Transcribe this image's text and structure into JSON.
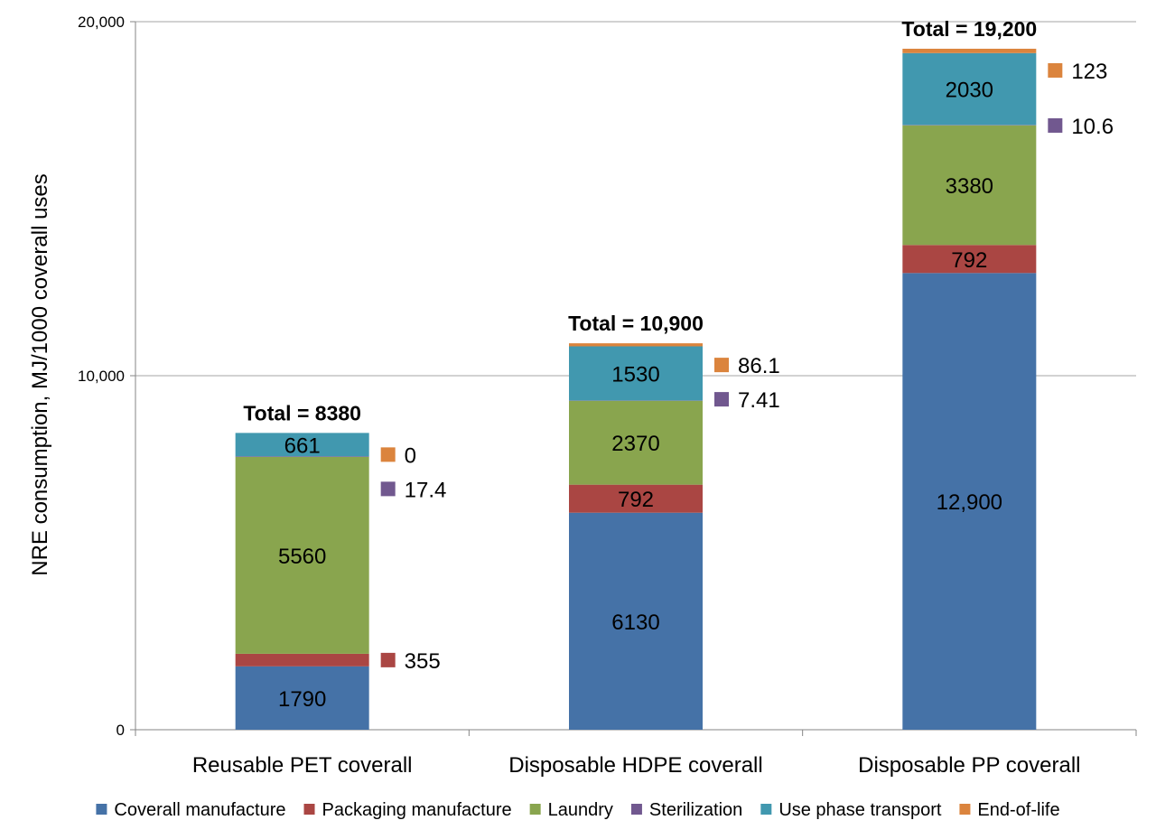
{
  "chart_data": {
    "type": "bar",
    "stacked": true,
    "title": "",
    "xlabel": "",
    "ylabel": "NRE consumption, MJ/1000 coverall uses",
    "ylim": [
      0,
      20000
    ],
    "yticks": [
      0,
      10000,
      20000
    ],
    "ytick_labels": [
      "0",
      "10,000",
      "20,000"
    ],
    "grid": true,
    "legend_position": "bottom",
    "categories": [
      "Reusable PET coverall",
      "Disposable HDPE coverall",
      "Disposable PP coverall"
    ],
    "series": [
      {
        "name": "Coverall manufacture",
        "color": "#4572a7",
        "values": [
          1790,
          6130,
          12900
        ],
        "labels": [
          "1790",
          "6130",
          "12,900"
        ]
      },
      {
        "name": "Packaging manufacture",
        "color": "#aa4643",
        "values": [
          355,
          792,
          792
        ],
        "labels": [
          "355",
          "792",
          "792"
        ]
      },
      {
        "name": "Laundry",
        "color": "#89a54e",
        "values": [
          5560,
          2370,
          3380
        ],
        "labels": [
          "5560",
          "2370",
          "3380"
        ]
      },
      {
        "name": "Sterilization",
        "color": "#71588f",
        "values": [
          17.4,
          7.41,
          10.6
        ],
        "labels": [
          "17.4",
          "7.41",
          "10.6"
        ]
      },
      {
        "name": "Use phase transport",
        "color": "#4198af",
        "values": [
          661,
          1530,
          2030
        ],
        "labels": [
          "661",
          "1530",
          "2030"
        ]
      },
      {
        "name": "End-of-life",
        "color": "#db843d",
        "values": [
          0,
          86.1,
          123
        ],
        "labels": [
          "0",
          "86.1",
          "123"
        ]
      }
    ],
    "totals": [
      "Total = 8380",
      "Total = 10,900",
      "Total = 19,200"
    ]
  }
}
